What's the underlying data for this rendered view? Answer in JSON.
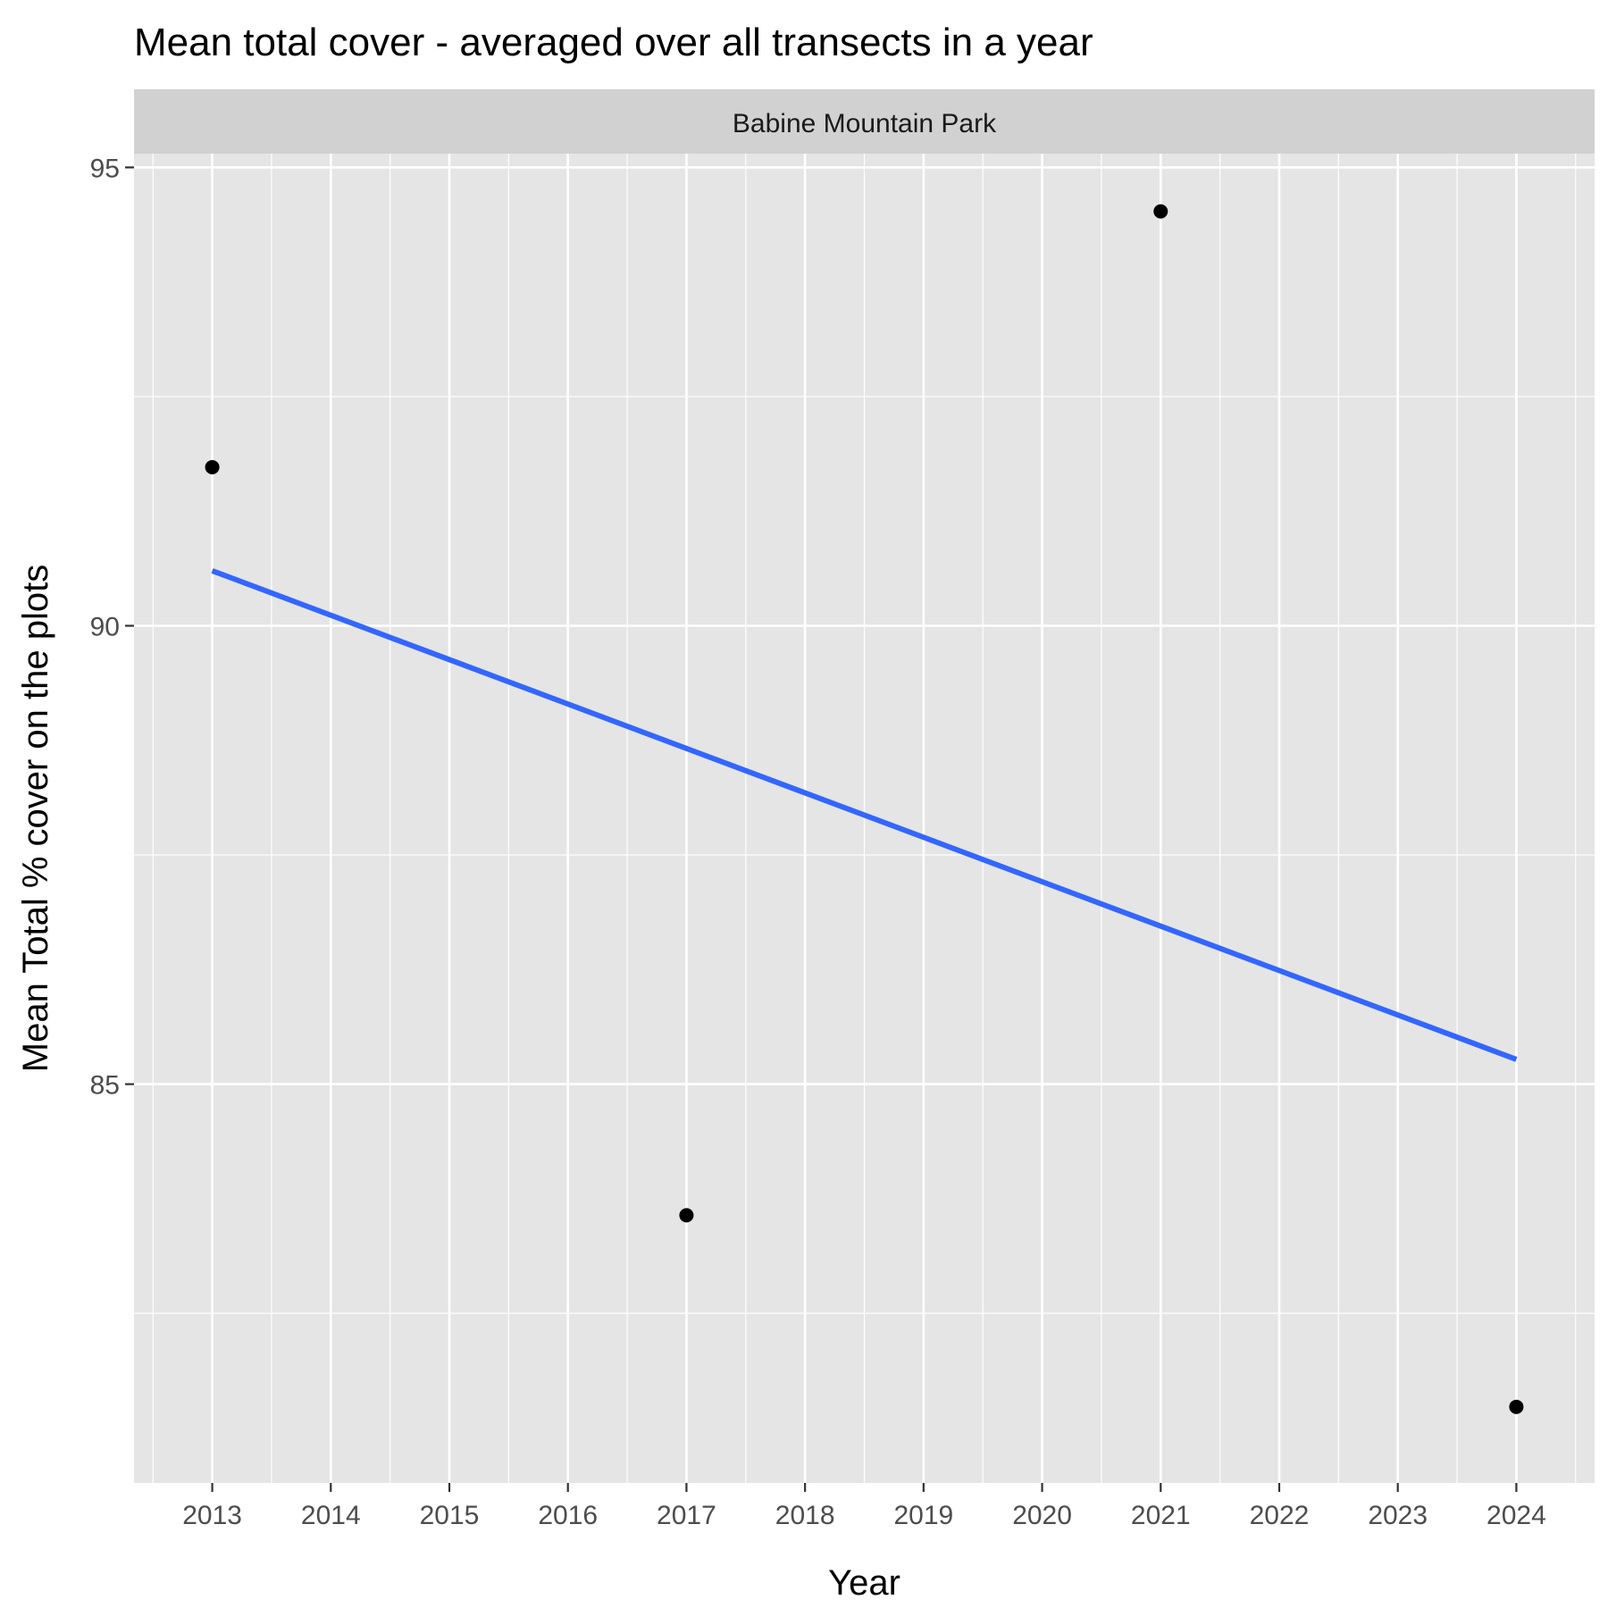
{
  "chart_data": {
    "type": "scatter",
    "title": "Mean total cover - averaged over all transects in a year",
    "facet_label": "Babine Mountain Park",
    "xlabel": "Year",
    "ylabel": "Mean Total % cover on the plots",
    "x_ticks": [
      "2013",
      "2014",
      "2015",
      "2016",
      "2017",
      "2018",
      "2019",
      "2020",
      "2021",
      "2022",
      "2023",
      "2024"
    ],
    "y_ticks": [
      "85",
      "90",
      "95"
    ],
    "xlim": [
      2012.34,
      2024.66
    ],
    "ylim": [
      80.65,
      95.15
    ],
    "grid": true,
    "points": [
      {
        "x": 2013,
        "y": 91.73
      },
      {
        "x": 2017,
        "y": 83.57
      },
      {
        "x": 2021,
        "y": 94.52
      },
      {
        "x": 2024,
        "y": 81.48
      }
    ],
    "trend_line": {
      "type": "linear fit",
      "color": "#3366ff",
      "x": [
        2013,
        2024
      ],
      "y": [
        90.6,
        85.27
      ]
    },
    "colors": {
      "panel_background": "#e5e5e5",
      "strip_background": "#d1d1d1",
      "grid": "#ffffff",
      "points": "#000000",
      "trend": "#3366ff"
    }
  }
}
